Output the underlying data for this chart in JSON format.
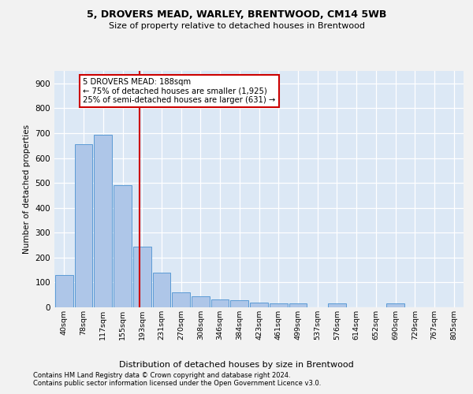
{
  "title1": "5, DROVERS MEAD, WARLEY, BRENTWOOD, CM14 5WB",
  "title2": "Size of property relative to detached houses in Brentwood",
  "xlabel": "Distribution of detached houses by size in Brentwood",
  "ylabel": "Number of detached properties",
  "bin_labels": [
    "40sqm",
    "78sqm",
    "117sqm",
    "155sqm",
    "193sqm",
    "231sqm",
    "270sqm",
    "308sqm",
    "346sqm",
    "384sqm",
    "423sqm",
    "461sqm",
    "499sqm",
    "537sqm",
    "576sqm",
    "614sqm",
    "652sqm",
    "690sqm",
    "729sqm",
    "767sqm",
    "805sqm"
  ],
  "bar_values": [
    130,
    655,
    695,
    490,
    245,
    140,
    60,
    45,
    32,
    27,
    20,
    17,
    17,
    0,
    17,
    0,
    0,
    17,
    0,
    0,
    0
  ],
  "bar_color": "#aec6e8",
  "bar_edge_color": "#5b9bd5",
  "ylim": [
    0,
    950
  ],
  "yticks": [
    0,
    100,
    200,
    300,
    400,
    500,
    600,
    700,
    800,
    900
  ],
  "property_line_color": "#cc0000",
  "annotation_line1": "5 DROVERS MEAD: 188sqm",
  "annotation_line2": "← 75% of detached houses are smaller (1,925)",
  "annotation_line3": "25% of semi-detached houses are larger (631) →",
  "footer1": "Contains HM Land Registry data © Crown copyright and database right 2024.",
  "footer2": "Contains public sector information licensed under the Open Government Licence v3.0.",
  "bg_color": "#dce8f5",
  "fig_bg_color": "#f2f2f2",
  "grid_color": "#ffffff"
}
